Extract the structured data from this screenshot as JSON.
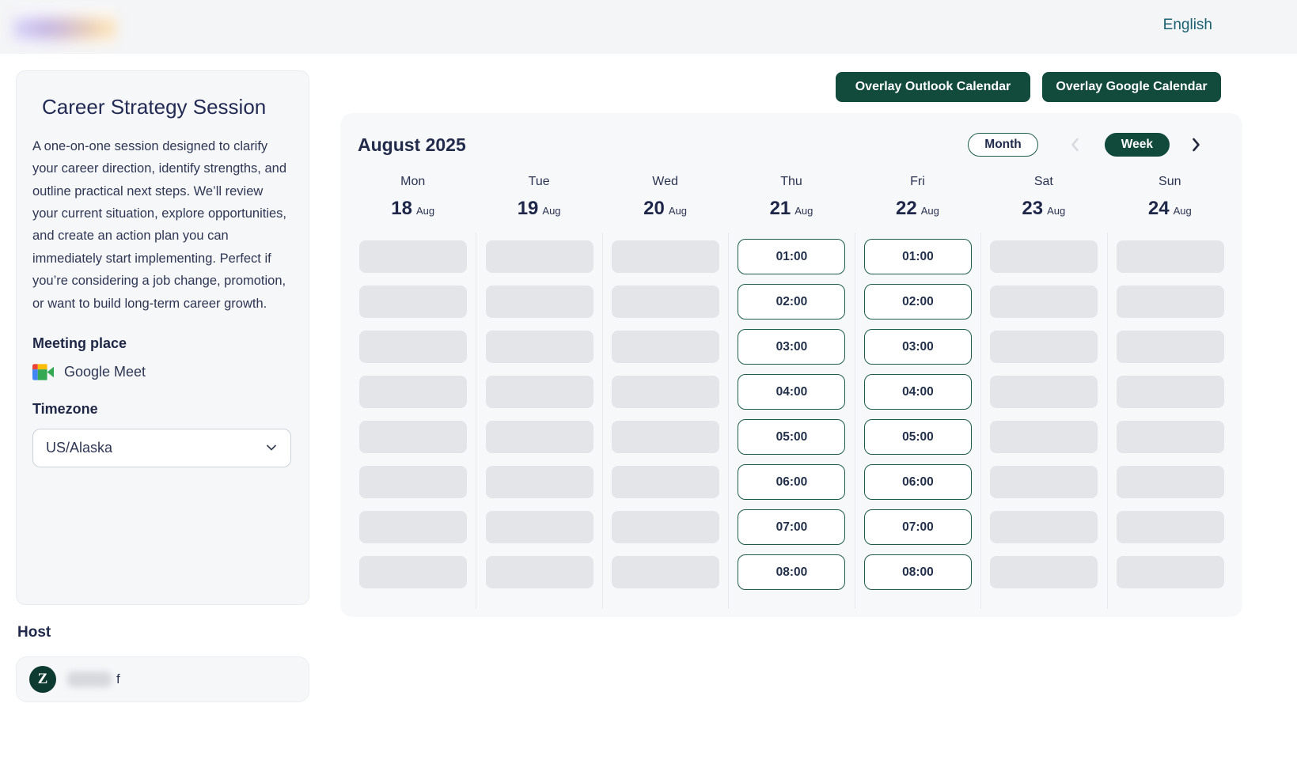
{
  "header": {
    "language": "English"
  },
  "event": {
    "title": "Career Strategy Session",
    "description": "A one-on-one session designed to clarify your career direction, identify strengths, and outline practical next steps. We’ll review your current situation, explore opportunities, and create an action plan you can immediately start implementing. Perfect if you’re considering a job change, promotion, or want to build long-term career growth.",
    "meeting_place_label": "Meeting place",
    "meeting_place": "Google Meet",
    "timezone_label": "Timezone",
    "timezone": "US/Alaska"
  },
  "host": {
    "section_label": "Host",
    "avatar_letter": "Z",
    "name_visible": "f"
  },
  "toolbar": {
    "overlay_outlook": "Overlay Outlook Calendar",
    "overlay_google": "Overlay Google Calendar"
  },
  "calendar": {
    "month_title": "August 2025",
    "view_month": "Month",
    "view_week": "Week",
    "placeholder_rows": 8,
    "days": [
      {
        "name": "Mon",
        "date": "18",
        "month": "Aug",
        "available": false,
        "slots": []
      },
      {
        "name": "Tue",
        "date": "19",
        "month": "Aug",
        "available": false,
        "slots": []
      },
      {
        "name": "Wed",
        "date": "20",
        "month": "Aug",
        "available": false,
        "slots": []
      },
      {
        "name": "Thu",
        "date": "21",
        "month": "Aug",
        "available": true,
        "slots": [
          "01:00",
          "02:00",
          "03:00",
          "04:00",
          "05:00",
          "06:00",
          "07:00",
          "08:00"
        ]
      },
      {
        "name": "Fri",
        "date": "22",
        "month": "Aug",
        "available": true,
        "slots": [
          "01:00",
          "02:00",
          "03:00",
          "04:00",
          "05:00",
          "06:00",
          "07:00",
          "08:00"
        ]
      },
      {
        "name": "Sat",
        "date": "23",
        "month": "Aug",
        "available": false,
        "slots": []
      },
      {
        "name": "Sun",
        "date": "24",
        "month": "Aug",
        "available": false,
        "slots": []
      }
    ]
  },
  "colors": {
    "primary_green": "#124a3c",
    "slot_border_green": "#1d5c4a",
    "text_navy": "#222b4c",
    "link_teal": "#1a6173",
    "placeholder_gray": "#e3e5e9"
  }
}
